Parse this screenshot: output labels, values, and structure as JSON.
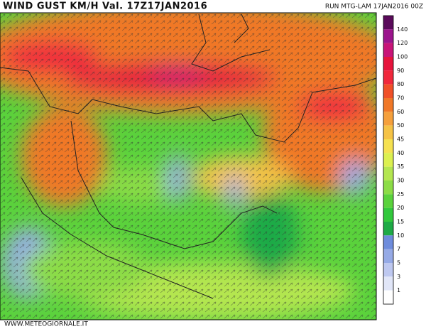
{
  "header": {
    "title": "WIND GUST KM/H Val. 17Z17JAN2016",
    "run": "RUN MTG-LAM 17JAN2016 00Z"
  },
  "footer": "WWW.METEOGIORNALE.IT",
  "legend": {
    "top_color": "#5a0a5a",
    "levels": [
      {
        "label": "140",
        "color": "#9b148c"
      },
      {
        "label": "120",
        "color": "#c81478"
      },
      {
        "label": "100",
        "color": "#e6143c"
      },
      {
        "label": "90",
        "color": "#f0283c"
      },
      {
        "label": "80",
        "color": "#f05028"
      },
      {
        "label": "70",
        "color": "#f07828"
      },
      {
        "label": "60",
        "color": "#f5a03c"
      },
      {
        "label": "50",
        "color": "#f5c346"
      },
      {
        "label": "45",
        "color": "#f5e150"
      },
      {
        "label": "40",
        "color": "#dcf050"
      },
      {
        "label": "35",
        "color": "#b4e650"
      },
      {
        "label": "30",
        "color": "#8cdc46"
      },
      {
        "label": "25",
        "color": "#5ad23c"
      },
      {
        "label": "20",
        "color": "#32c83c"
      },
      {
        "label": "15",
        "color": "#1eaa46"
      },
      {
        "label": "10",
        "color": "#6e8cdc"
      },
      {
        "label": "7",
        "color": "#96aae6"
      },
      {
        "label": "5",
        "color": "#bec8f0"
      },
      {
        "label": "3",
        "color": "#e1e6f8"
      },
      {
        "label": "1",
        "color": "#ffffff"
      }
    ]
  }
}
